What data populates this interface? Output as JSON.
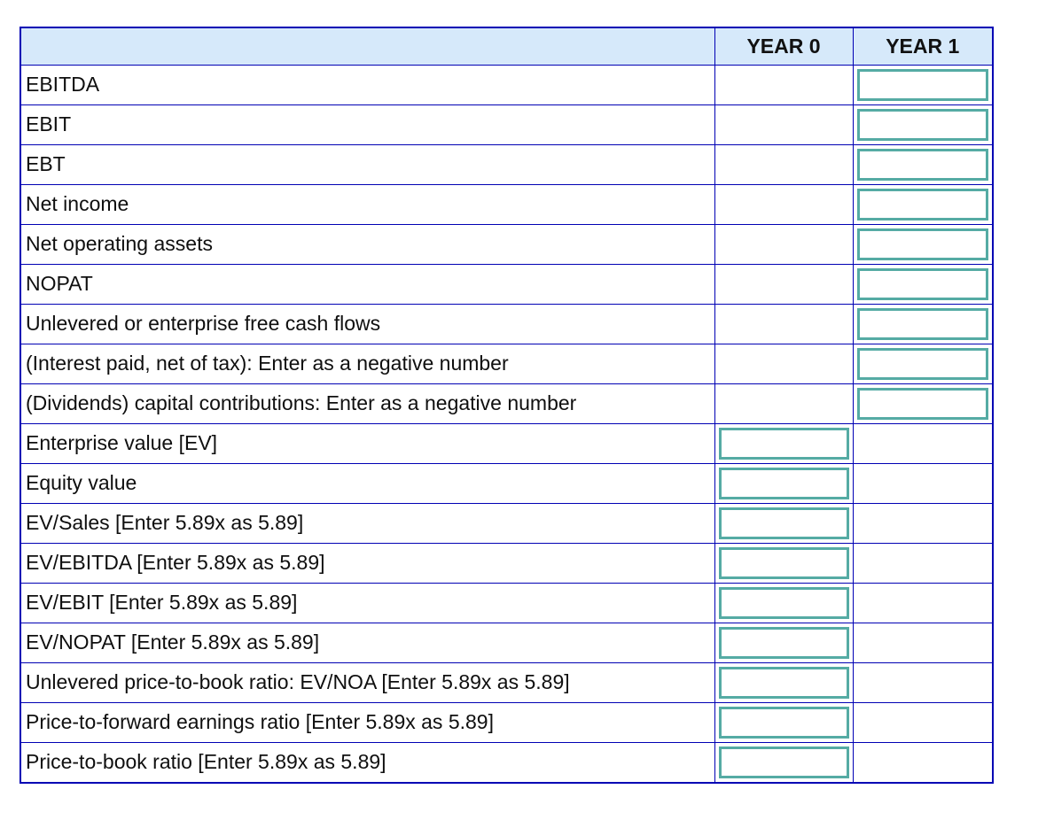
{
  "table": {
    "headers": [
      "",
      "YEAR 0",
      "YEAR 1"
    ],
    "rows": [
      {
        "label": "EBITDA",
        "input_column": "year1",
        "year0_value": "",
        "year1_value": ""
      },
      {
        "label": "EBIT",
        "input_column": "year1",
        "year0_value": "",
        "year1_value": ""
      },
      {
        "label": "EBT",
        "input_column": "year1",
        "year0_value": "",
        "year1_value": ""
      },
      {
        "label": "Net income",
        "input_column": "year1",
        "year0_value": "",
        "year1_value": ""
      },
      {
        "label": "Net operating assets",
        "input_column": "year1",
        "year0_value": "",
        "year1_value": ""
      },
      {
        "label": "NOPAT",
        "input_column": "year1",
        "year0_value": "",
        "year1_value": ""
      },
      {
        "label": "Unlevered or enterprise free cash flows",
        "input_column": "year1",
        "year0_value": "",
        "year1_value": ""
      },
      {
        "label": "(Interest paid, net of tax): Enter as a negative number",
        "input_column": "year1",
        "year0_value": "",
        "year1_value": ""
      },
      {
        "label": "(Dividends) capital contributions: Enter as a negative number",
        "input_column": "year1",
        "year0_value": "",
        "year1_value": ""
      },
      {
        "label": "Enterprise value [EV]",
        "input_column": "year0",
        "year0_value": "",
        "year1_value": ""
      },
      {
        "label": "Equity value",
        "input_column": "year0",
        "year0_value": "",
        "year1_value": ""
      },
      {
        "label": "EV/Sales [Enter 5.89x as 5.89]",
        "input_column": "year0",
        "year0_value": "",
        "year1_value": ""
      },
      {
        "label": "EV/EBITDA [Enter 5.89x as 5.89]",
        "input_column": "year0",
        "year0_value": "",
        "year1_value": ""
      },
      {
        "label": "EV/EBIT [Enter 5.89x as 5.89]",
        "input_column": "year0",
        "year0_value": "",
        "year1_value": ""
      },
      {
        "label": "EV/NOPAT [Enter 5.89x as 5.89]",
        "input_column": "year0",
        "year0_value": "",
        "year1_value": ""
      },
      {
        "label": "Unlevered price-to-book ratio: EV/NOA [Enter 5.89x as 5.89]",
        "input_column": "year0",
        "year0_value": "",
        "year1_value": ""
      },
      {
        "label": "Price-to-forward earnings ratio [Enter 5.89x as 5.89]",
        "input_column": "year0",
        "year0_value": "",
        "year1_value": ""
      },
      {
        "label": "Price-to-book ratio [Enter 5.89x as 5.89]",
        "input_column": "year0",
        "year0_value": "",
        "year1_value": ""
      }
    ]
  },
  "colors": {
    "grid_border": "#0000b4",
    "header_background": "#d6e9fa",
    "input_border": "#55aba4",
    "text": "#0f0f0f"
  }
}
